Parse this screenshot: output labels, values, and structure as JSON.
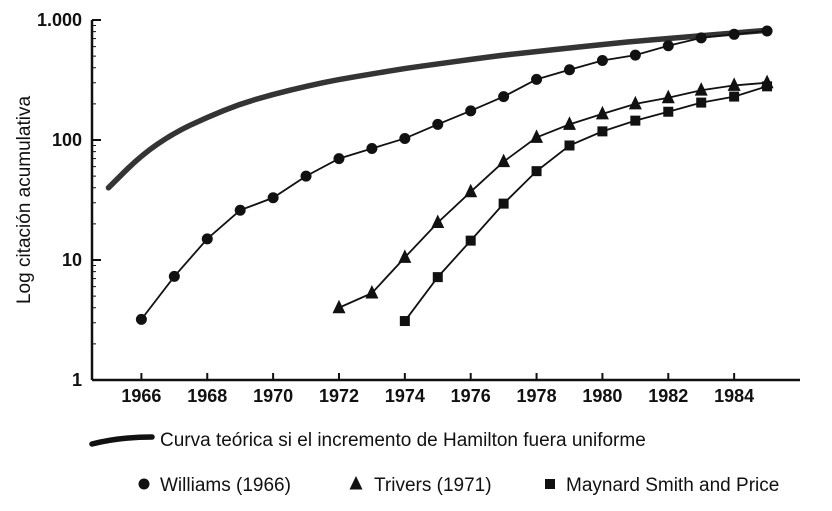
{
  "chart_data": {
    "type": "line",
    "title": "",
    "xlabel": "",
    "ylabel": "Log citación acumulativa",
    "y_scale": "log",
    "ylim": [
      1,
      1000
    ],
    "xlim": [
      1964.5,
      1986
    ],
    "y_ticks": [
      {
        "value": 1,
        "label": "1"
      },
      {
        "value": 10,
        "label": "10"
      },
      {
        "value": 100,
        "label": "100"
      },
      {
        "value": 1000,
        "label": "1.000"
      }
    ],
    "x_ticks": [
      {
        "value": 1966,
        "label": "1966"
      },
      {
        "value": 1968,
        "label": "1968"
      },
      {
        "value": 1970,
        "label": "1970"
      },
      {
        "value": 1972,
        "label": "1972"
      },
      {
        "value": 1974,
        "label": "1974"
      },
      {
        "value": 1976,
        "label": "1976"
      },
      {
        "value": 1978,
        "label": "1978"
      },
      {
        "value": 1980,
        "label": "1980"
      },
      {
        "value": 1982,
        "label": "1982"
      },
      {
        "value": 1984,
        "label": "1984"
      }
    ],
    "grid": false,
    "legend_position": "bottom",
    "series": [
      {
        "name": "Curva teórica si el incremento de Hamilton fuera uniforme",
        "style": "thick-line",
        "color": "#111111",
        "x": [
          1965,
          1966,
          1967,
          1968,
          1969,
          1970,
          1971,
          1972,
          1973,
          1974,
          1975,
          1976,
          1977,
          1978,
          1979,
          1980,
          1981,
          1982,
          1983,
          1984,
          1985
        ],
        "y": [
          40,
          75,
          115,
          155,
          200,
          240,
          280,
          320,
          355,
          395,
          430,
          470,
          510,
          545,
          585,
          625,
          665,
          700,
          740,
          780,
          820
        ]
      },
      {
        "name": "Williams (1966)",
        "style": "circle",
        "color": "#111111",
        "x": [
          1966,
          1967,
          1968,
          1969,
          1970,
          1971,
          1972,
          1973,
          1974,
          1975,
          1976,
          1977,
          1978,
          1979,
          1980,
          1981,
          1982,
          1983,
          1984,
          1985
        ],
        "y": [
          3.2,
          7.3,
          15,
          26,
          33,
          50,
          70,
          85,
          103,
          135,
          175,
          230,
          320,
          385,
          460,
          510,
          610,
          710,
          760,
          810
        ]
      },
      {
        "name": "Trivers (1971)",
        "style": "triangle",
        "color": "#111111",
        "x": [
          1972,
          1973,
          1974,
          1975,
          1976,
          1977,
          1978,
          1979,
          1980,
          1981,
          1982,
          1983,
          1984,
          1985
        ],
        "y": [
          4,
          5.3,
          10.5,
          20.5,
          37,
          66,
          105,
          135,
          165,
          200,
          225,
          260,
          285,
          300
        ]
      },
      {
        "name": "Maynard Smith and Price",
        "style": "square",
        "color": "#111111",
        "x": [
          1974,
          1975,
          1976,
          1977,
          1978,
          1979,
          1980,
          1981,
          1982,
          1983,
          1984,
          1985
        ],
        "y": [
          3.1,
          7.2,
          14.5,
          29.5,
          55,
          90,
          118,
          145,
          172,
          205,
          230,
          280
        ]
      }
    ]
  }
}
